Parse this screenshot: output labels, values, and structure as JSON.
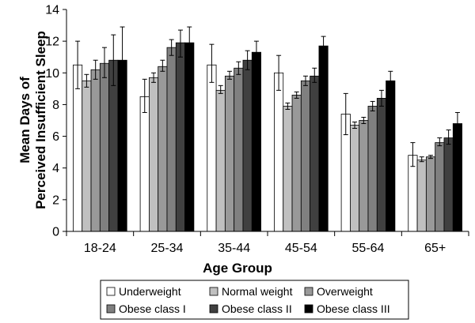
{
  "chart_data": {
    "type": "bar",
    "title": "",
    "xlabel": "Age Group",
    "ylabel_lines": [
      "Mean Days of",
      "Perceived Insufficient Sleep"
    ],
    "ylim": [
      0,
      14
    ],
    "yticks": [
      0,
      2,
      4,
      6,
      8,
      10,
      12,
      14
    ],
    "grid": false,
    "legend_position": "bottom",
    "categories": [
      "18-24",
      "25-34",
      "35-44",
      "45-54",
      "55-64",
      "65+"
    ],
    "series": [
      {
        "name": "Underweight",
        "color": "#ffffff",
        "values": [
          10.5,
          8.5,
          10.5,
          10.0,
          7.4,
          4.8
        ],
        "err_low": [
          9.0,
          7.5,
          9.4,
          8.9,
          6.1,
          4.1
        ],
        "err_high": [
          12.0,
          9.6,
          11.8,
          11.1,
          8.7,
          5.6
        ]
      },
      {
        "name": "Normal weight",
        "color": "#c0c0c0",
        "values": [
          9.5,
          9.7,
          8.9,
          7.9,
          6.7,
          4.5
        ],
        "err_low": [
          9.1,
          9.4,
          8.7,
          7.7,
          6.5,
          4.4
        ],
        "err_high": [
          9.9,
          10.0,
          9.2,
          8.1,
          6.9,
          4.7
        ]
      },
      {
        "name": "Overweight",
        "color": "#999999",
        "values": [
          10.2,
          10.4,
          9.8,
          8.6,
          7.0,
          4.7
        ],
        "err_low": [
          9.6,
          10.1,
          9.6,
          8.4,
          6.8,
          4.6
        ],
        "err_high": [
          10.8,
          10.8,
          10.1,
          8.8,
          7.2,
          4.8
        ]
      },
      {
        "name": "Obese class I",
        "color": "#808080",
        "values": [
          10.6,
          11.6,
          10.3,
          9.5,
          7.9,
          5.6
        ],
        "err_low": [
          9.7,
          11.1,
          9.9,
          9.2,
          7.6,
          5.4
        ],
        "err_high": [
          11.6,
          12.1,
          10.7,
          9.8,
          8.2,
          5.9
        ]
      },
      {
        "name": "Obese class II",
        "color": "#404040",
        "values": [
          10.8,
          11.9,
          10.8,
          9.8,
          8.4,
          5.9
        ],
        "err_low": [
          9.2,
          11.0,
          10.2,
          9.4,
          7.9,
          5.5
        ],
        "err_high": [
          12.4,
          12.7,
          11.4,
          10.3,
          8.9,
          6.4
        ]
      },
      {
        "name": "Obese class III",
        "color": "#000000",
        "values": [
          10.8,
          11.9,
          11.3,
          11.7,
          9.5,
          6.8
        ],
        "err_low": [
          8.7,
          10.9,
          10.6,
          11.1,
          8.9,
          6.2
        ],
        "err_high": [
          12.9,
          12.9,
          12.0,
          12.3,
          10.1,
          7.5
        ]
      }
    ]
  }
}
